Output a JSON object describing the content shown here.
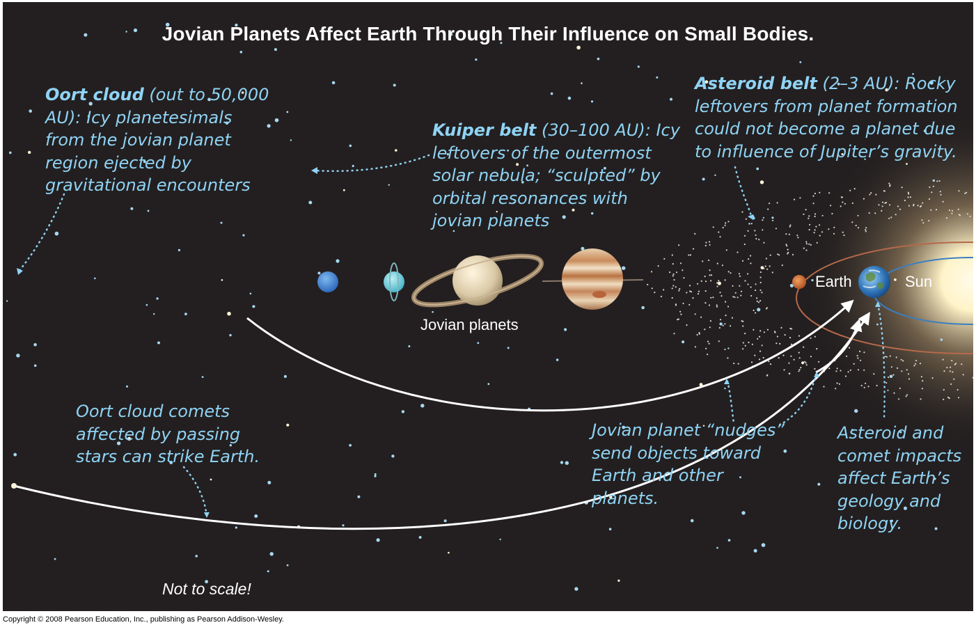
{
  "title": "Jovian Planets Affect Earth Through Their Influence on Small Bodies.",
  "oort_cloud": {
    "name": "Oort cloud",
    "lines": [
      " (out to 50,000",
      "AU): Icy planetesimals",
      "from the jovian planet",
      "region ejected by",
      "gravitational encounters"
    ]
  },
  "kuiper_belt": {
    "name": "Kuiper belt",
    "lines": [
      " (30–100 AU): Icy",
      "leftovers of the outermost",
      "solar nebula; “sculpted” by",
      "orbital resonances with",
      "jovian planets"
    ]
  },
  "asteroid_belt": {
    "name": "Asteroid belt",
    "lines": [
      " (2–3 AU): Rocky",
      "leftovers from planet formation",
      "could not become a planet due",
      "to influence of Jupiter’s gravity."
    ]
  },
  "oort_comets": {
    "lines": [
      "Oort cloud comets",
      "affected by passing",
      "stars can strike Earth."
    ]
  },
  "nudges": {
    "lines": [
      "Jovian planet “nudges”",
      "send objects toward",
      "Earth and other",
      "planets."
    ]
  },
  "impacts": {
    "lines": [
      "Asteroid and",
      "comet impacts",
      "affect Earth’s",
      "geology and",
      "biology."
    ]
  },
  "labels": {
    "jovian": "Jovian planets",
    "earth": "Earth",
    "sun": "Sun"
  },
  "not_to_scale": "Not to scale!",
  "copyright": "Copyright © 2008 Pearson Education, Inc., publishing as Pearson Addison-Wesley.",
  "colors": {
    "background": "#231f20",
    "caption": "#8fd3f4",
    "arrow": "#ffffff",
    "orbit": "#b5694a",
    "earth_orbit": "#3a7fc1",
    "star": "#a8d8f0"
  }
}
